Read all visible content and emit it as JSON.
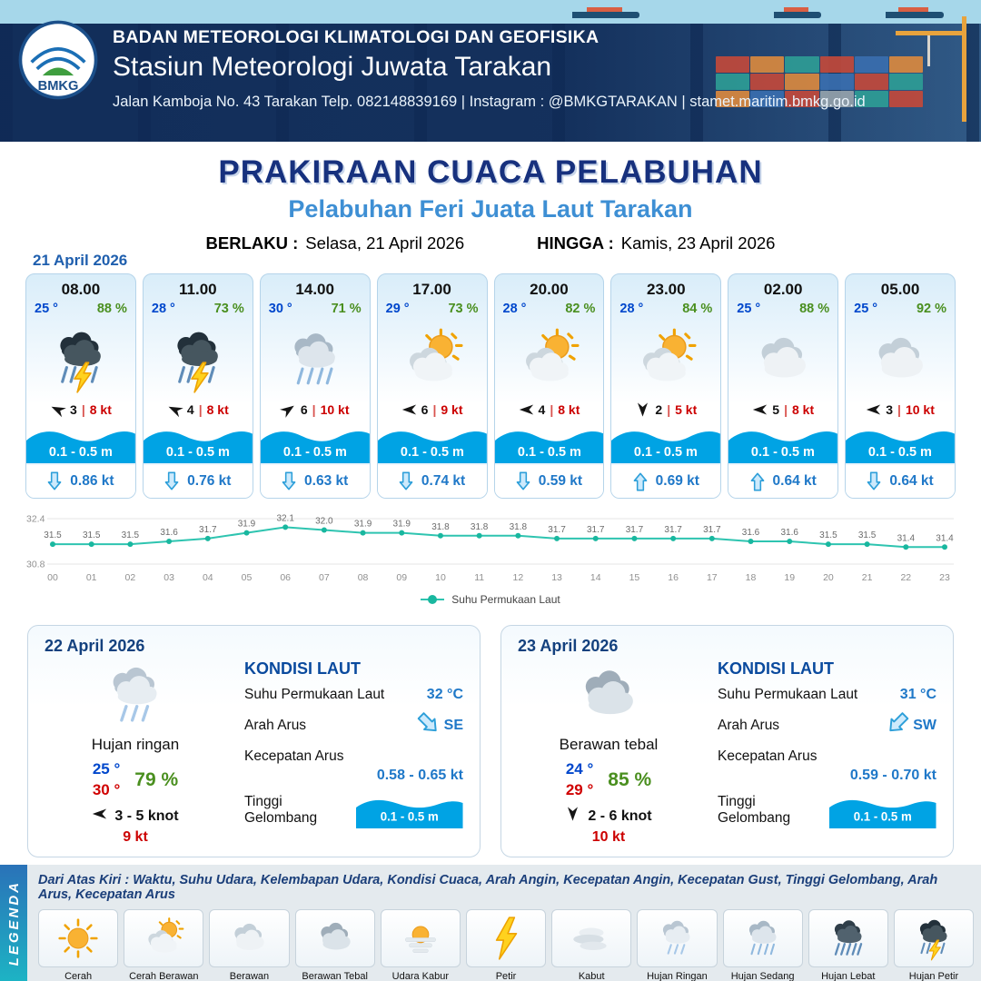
{
  "header": {
    "logo_text": "BMKG",
    "org": "BADAN METEOROLOGI KLIMATOLOGI DAN GEOFISIKA",
    "station": "Stasiun Meteorologi Juwata Tarakan",
    "contact": "Jalan Kamboja No. 43 Tarakan  Telp. 082148839169 | Instagram : @BMKGTARAKAN | stamet.maritim.bmkg.go.id"
  },
  "title": {
    "main": "PRAKIRAAN CUACA PELABUHAN",
    "subtitle": "Pelabuhan Feri Juata Laut Tarakan",
    "valid_from_label": "BERLAKU :",
    "valid_from": "Selasa, 21 April 2026",
    "valid_to_label": "HINGGA :",
    "valid_to": "Kamis, 23 April 2026"
  },
  "forecast_date": "21 April 2026",
  "cards": [
    {
      "time": "08.00",
      "temp": "25 °",
      "humidity": "88 %",
      "icon": "rain-thunder",
      "wind_dir_deg": 205,
      "wind_val": "3",
      "wind_speed": "8 kt",
      "wave": "0.1 - 0.5 m",
      "current_dir": "down",
      "current": "0.86 kt"
    },
    {
      "time": "11.00",
      "temp": "28 °",
      "humidity": "73 %",
      "icon": "rain-thunder",
      "wind_dir_deg": 205,
      "wind_val": "4",
      "wind_speed": "8 kt",
      "wave": "0.1 - 0.5 m",
      "current_dir": "down",
      "current": "0.76 kt"
    },
    {
      "time": "14.00",
      "temp": "30 °",
      "humidity": "71 %",
      "icon": "rain-moderate",
      "wind_dir_deg": 325,
      "wind_val": "6",
      "wind_speed": "10 kt",
      "wave": "0.1 - 0.5 m",
      "current_dir": "down",
      "current": "0.63 kt"
    },
    {
      "time": "17.00",
      "temp": "29 °",
      "humidity": "73 %",
      "icon": "partly-cloudy",
      "wind_dir_deg": 180,
      "wind_val": "6",
      "wind_speed": "9 kt",
      "wave": "0.1 - 0.5 m",
      "current_dir": "down",
      "current": "0.74 kt"
    },
    {
      "time": "20.00",
      "temp": "28 °",
      "humidity": "82 %",
      "icon": "partly-cloudy",
      "wind_dir_deg": 180,
      "wind_val": "4",
      "wind_speed": "8 kt",
      "wave": "0.1 - 0.5 m",
      "current_dir": "down",
      "current": "0.59 kt"
    },
    {
      "time": "23.00",
      "temp": "28 °",
      "humidity": "84 %",
      "icon": "partly-cloudy",
      "wind_dir_deg": 90,
      "wind_val": "2",
      "wind_speed": "5 kt",
      "wave": "0.1 - 0.5 m",
      "current_dir": "up",
      "current": "0.69 kt"
    },
    {
      "time": "02.00",
      "temp": "25 °",
      "humidity": "88 %",
      "icon": "cloudy",
      "wind_dir_deg": 180,
      "wind_val": "5",
      "wind_speed": "8 kt",
      "wave": "0.1 - 0.5 m",
      "current_dir": "up",
      "current": "0.64 kt"
    },
    {
      "time": "05.00",
      "temp": "25 °",
      "humidity": "92 %",
      "icon": "cloudy",
      "wind_dir_deg": 180,
      "wind_val": "3",
      "wind_speed": "10 kt",
      "wave": "0.1 - 0.5 m",
      "current_dir": "down",
      "current": "0.64 kt"
    }
  ],
  "days": [
    {
      "date": "22 April 2026",
      "icon": "rain-light",
      "condition": "Hujan ringan",
      "temp_min": "25 °",
      "temp_max": "30 °",
      "humidity": "79 %",
      "wind_arrow_deg": 180,
      "wind_range": "3 - 5 knot",
      "gust": "9 kt",
      "sea": {
        "title": "KONDISI LAUT",
        "sst_label": "Suhu Permukaan Laut",
        "sst": "32 °C",
        "current_dir_label": "Arah Arus",
        "current_dir": "SE",
        "current_speed_label": "Kecepatan Arus",
        "current_speed": "0.58 - 0.65 kt",
        "wave_label": "Tinggi Gelombang",
        "wave": "0.1 - 0.5 m"
      }
    },
    {
      "date": "23 April 2026",
      "icon": "cloud-thick",
      "condition": "Berawan tebal",
      "temp_min": "24 °",
      "temp_max": "29 °",
      "humidity": "85 %",
      "wind_arrow_deg": 90,
      "wind_range": "2 - 6 knot",
      "gust": "10 kt",
      "sea": {
        "title": "KONDISI LAUT",
        "sst_label": "Suhu Permukaan Laut",
        "sst": "31 °C",
        "current_dir_label": "Arah Arus",
        "current_dir": "SW",
        "current_speed_label": "Kecepatan Arus",
        "current_speed": "0.59 - 0.70 kt",
        "wave_label": "Tinggi Gelombang",
        "wave": "0.1 - 0.5 m"
      }
    }
  ],
  "legend": {
    "title": "LEGENDA",
    "description": "Dari Atas Kiri : Waktu, Suhu Udara, Kelembapan Udara, Kondisi Cuaca, Arah Angin, Kecepatan Angin, Kecepatan Gust, Tinggi Gelombang, Arah Arus, Kecepatan Arus",
    "items": [
      {
        "label": "Cerah",
        "icon": "sunny"
      },
      {
        "label": "Cerah Berawan",
        "icon": "partly-cloudy"
      },
      {
        "label": "Berawan",
        "icon": "cloudy"
      },
      {
        "label": "Berawan Tebal",
        "icon": "cloud-thick"
      },
      {
        "label": "Udara Kabur",
        "icon": "haze"
      },
      {
        "label": "Petir",
        "icon": "lightning"
      },
      {
        "label": "Kabut",
        "icon": "fog"
      },
      {
        "label": "Hujan Ringan",
        "icon": "rain-light"
      },
      {
        "label": "Hujan Sedang",
        "icon": "rain-moderate"
      },
      {
        "label": "Hujan Lebat",
        "icon": "rain-heavy"
      },
      {
        "label": "Hujan Petir",
        "icon": "rain-thunder"
      }
    ]
  },
  "chart_data": {
    "type": "line",
    "x": [
      "00",
      "01",
      "02",
      "03",
      "04",
      "05",
      "06",
      "07",
      "08",
      "09",
      "10",
      "11",
      "12",
      "13",
      "14",
      "15",
      "16",
      "17",
      "18",
      "19",
      "20",
      "21",
      "22",
      "23"
    ],
    "values": [
      31.5,
      31.5,
      31.5,
      31.6,
      31.7,
      31.9,
      32.1,
      32.0,
      31.9,
      31.9,
      31.8,
      31.8,
      31.8,
      31.7,
      31.7,
      31.7,
      31.7,
      31.7,
      31.6,
      31.6,
      31.5,
      31.5,
      31.4,
      31.4
    ],
    "series_name": "Suhu Permukaan Laut",
    "ylim": [
      30.8,
      32.4
    ],
    "line_color": "#2ec4b0",
    "grid": true,
    "legend_position": "bottom"
  },
  "colors": {
    "title_navy": "#17317e",
    "subtitle_blue": "#3e8fd4",
    "temp_blue": "#0047cc",
    "humidity_green": "#4a8f1f",
    "alert_red": "#cc0000",
    "wave_blue": "#00a3e4",
    "current_blue": "#1f78c8",
    "chart_teal": "#2ec4b0"
  }
}
